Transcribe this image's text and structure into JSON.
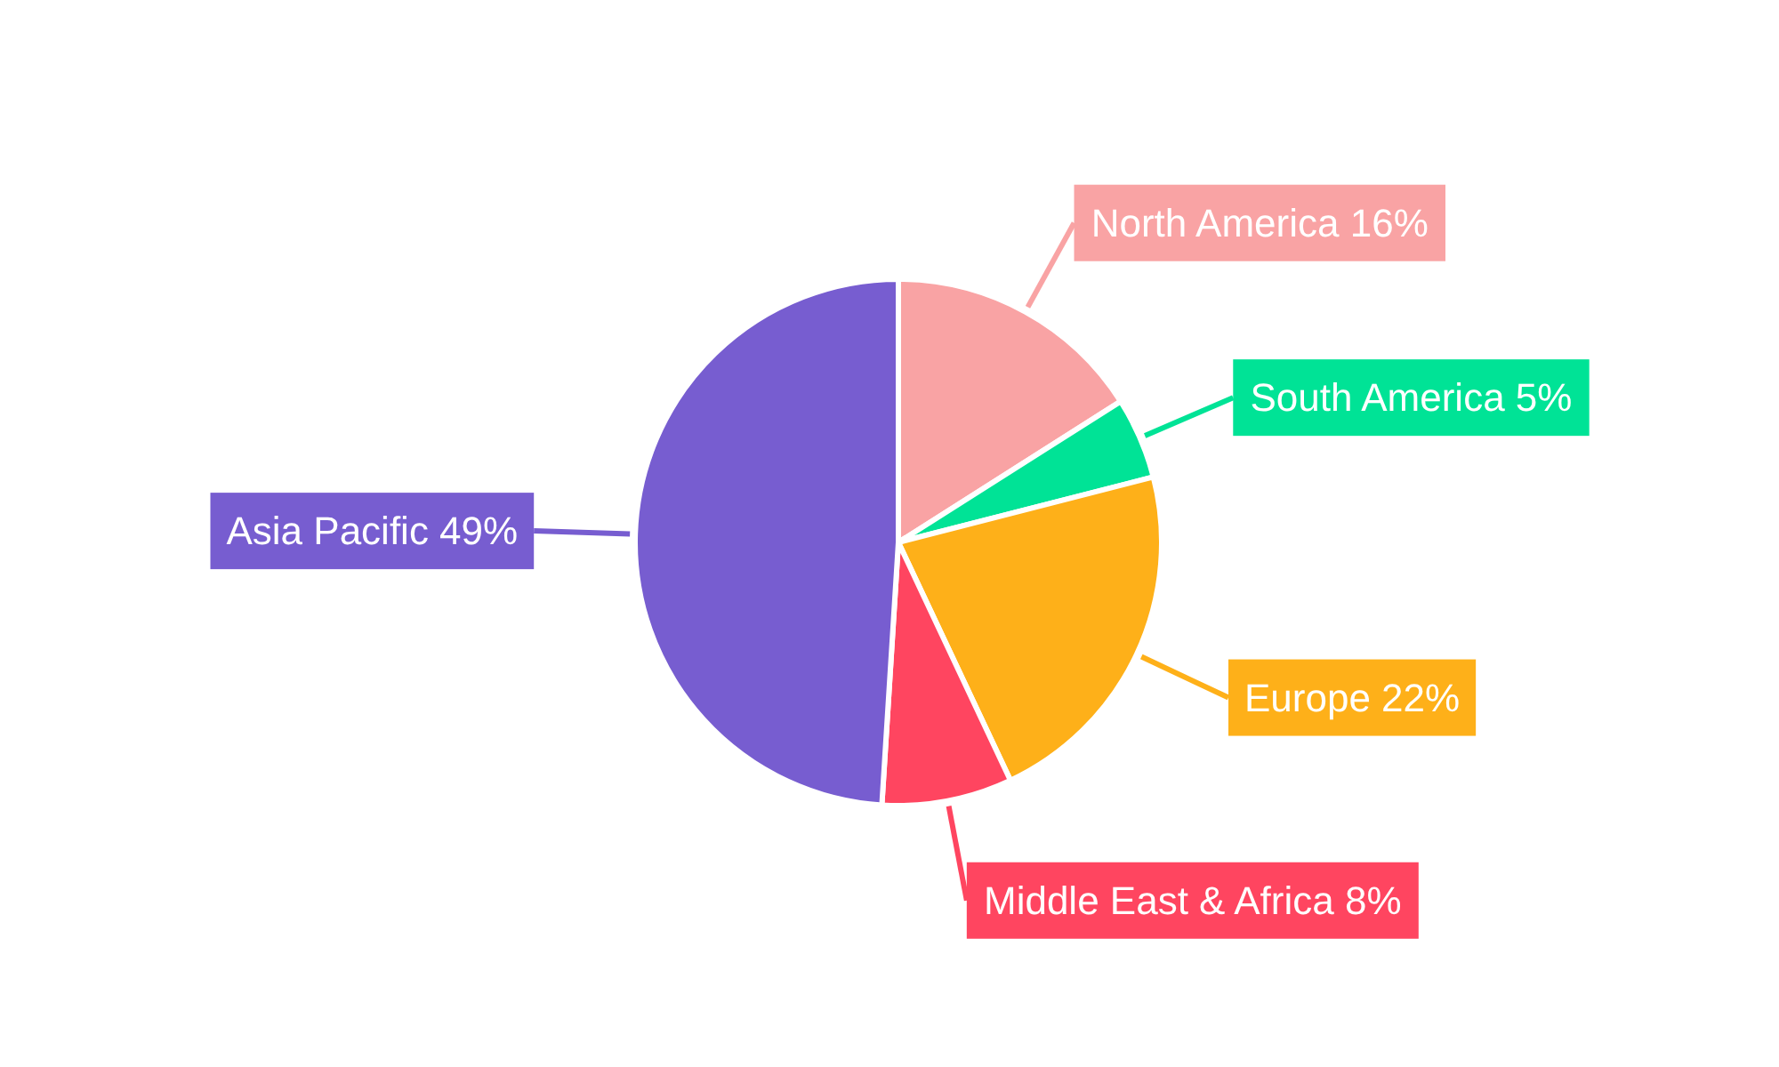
{
  "chart_data": {
    "type": "pie",
    "categories": [
      "North America",
      "South America",
      "Europe",
      "Middle East & Africa",
      "Asia Pacific"
    ],
    "values": [
      16,
      5,
      22,
      8,
      49
    ],
    "value_labels": [
      "16%",
      "5%",
      "22%",
      "8%",
      "49%"
    ],
    "colors": [
      "#f9a3a4",
      "#00e396",
      "#feb019",
      "#ff4560",
      "#775dd0"
    ]
  }
}
